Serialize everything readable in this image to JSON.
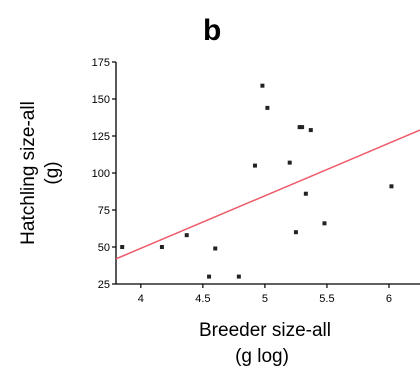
{
  "panel_label": "b",
  "chart_data": {
    "type": "scatter",
    "title": "",
    "xlabel_line1": "Breeder size-all",
    "xlabel_line2": "(g log)",
    "ylabel_line1": "Hatchling size-all",
    "ylabel_line2": "(g)",
    "xlim": [
      3.8,
      6.25
    ],
    "ylim": [
      25,
      175
    ],
    "x_ticks": [
      4,
      4.5,
      5,
      5.5,
      6
    ],
    "x_tick_labels": [
      "4",
      "4.5",
      "5",
      "5.5",
      "6"
    ],
    "y_ticks": [
      25,
      50,
      75,
      100,
      125,
      150,
      175
    ],
    "y_tick_labels": [
      "25",
      "50",
      "75",
      "100",
      "125",
      "150",
      "175"
    ],
    "grid": false,
    "points": [
      {
        "x": 3.85,
        "y": 50
      },
      {
        "x": 4.17,
        "y": 50
      },
      {
        "x": 4.37,
        "y": 58
      },
      {
        "x": 4.55,
        "y": 30
      },
      {
        "x": 4.6,
        "y": 49
      },
      {
        "x": 4.79,
        "y": 30
      },
      {
        "x": 4.92,
        "y": 105
      },
      {
        "x": 4.98,
        "y": 159
      },
      {
        "x": 5.02,
        "y": 144
      },
      {
        "x": 5.2,
        "y": 107
      },
      {
        "x": 5.25,
        "y": 60
      },
      {
        "x": 5.28,
        "y": 131
      },
      {
        "x": 5.3,
        "y": 131
      },
      {
        "x": 5.33,
        "y": 86
      },
      {
        "x": 5.37,
        "y": 129
      },
      {
        "x": 5.48,
        "y": 66
      },
      {
        "x": 6.02,
        "y": 91
      }
    ],
    "fit_line": {
      "x": [
        3.8,
        6.25
      ],
      "y": [
        42,
        129
      ]
    },
    "colors": {
      "points": "#222222",
      "fit_line": "#ee5a6a",
      "axes": "#000000"
    }
  }
}
